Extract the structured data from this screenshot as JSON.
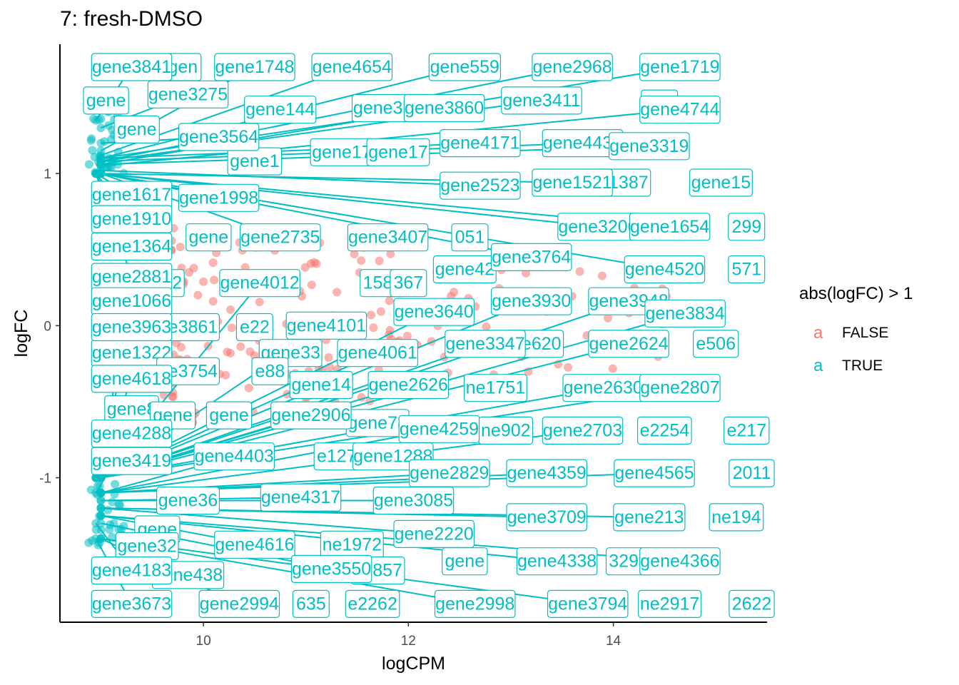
{
  "chart_data": {
    "type": "scatter",
    "title": "7: fresh-DMSO",
    "xlabel": "logCPM",
    "ylabel": "logFC",
    "xlim": [
      8.6,
      15.5
    ],
    "ylim": [
      -1.95,
      1.85
    ],
    "x_ticks": [
      10,
      12,
      14
    ],
    "x_tick_labels": [
      "10",
      "12",
      "14"
    ],
    "y_ticks": [
      -1,
      0,
      1
    ],
    "y_tick_labels": [
      "-1",
      "0",
      "1"
    ],
    "grid": false,
    "legend": {
      "title": "abs(logFC) > 1",
      "position": "right",
      "entries": [
        {
          "key": "a",
          "label": "FALSE",
          "color": "#F8766D"
        },
        {
          "key": "a",
          "label": "TRUE",
          "color": "#00BFC4"
        }
      ]
    },
    "colors": {
      "false": "#F8766D",
      "true": "#00BFC4"
    },
    "labeled_points": [
      {
        "label": "gene3841",
        "x": 8.95,
        "y": 1.35,
        "lx": 9.3,
        "ly": 1.7
      },
      {
        "label": "gene1748",
        "x": 9.0,
        "y": 1.15,
        "lx": 10.5,
        "ly": 1.7
      },
      {
        "label": "gene4654",
        "x": 9.0,
        "y": 1.12,
        "lx": 11.45,
        "ly": 1.7
      },
      {
        "label": "gene559",
        "x": 9.0,
        "y": 1.1,
        "lx": 12.55,
        "ly": 1.7
      },
      {
        "label": "gene2968",
        "x": 9.0,
        "y": 1.08,
        "lx": 13.6,
        "ly": 1.7
      },
      {
        "label": "gene1719",
        "x": 9.0,
        "y": 1.06,
        "lx": 14.65,
        "ly": 1.7
      },
      {
        "label": "gene3275",
        "x": 9.0,
        "y": 1.3,
        "lx": 9.85,
        "ly": 1.52
      },
      {
        "label": "gene3411",
        "x": 9.0,
        "y": 1.08,
        "lx": 13.3,
        "ly": 1.48
      },
      {
        "label": "gene3860",
        "x": 9.0,
        "y": 1.1,
        "lx": 12.35,
        "ly": 1.43
      },
      {
        "label": "gene4744",
        "x": 9.0,
        "y": 1.05,
        "lx": 14.65,
        "ly": 1.42
      },
      {
        "label": "gene3564",
        "x": 9.0,
        "y": 1.2,
        "lx": 10.15,
        "ly": 1.24
      },
      {
        "label": "gene4171",
        "x": 9.0,
        "y": 1.1,
        "lx": 12.7,
        "ly": 1.2
      },
      {
        "label": "gene4437",
        "x": 9.0,
        "y": 1.08,
        "lx": 13.7,
        "ly": 1.2
      },
      {
        "label": "gene3319",
        "x": 9.0,
        "y": 1.06,
        "lx": 14.35,
        "ly": 1.18
      },
      {
        "label": "gene2523",
        "x": 9.0,
        "y": 1.02,
        "lx": 12.7,
        "ly": 0.92
      },
      {
        "label": "gene1521",
        "x": 9.0,
        "y": 1.0,
        "lx": 13.6,
        "ly": 0.94
      },
      {
        "label": "gene1617",
        "x": 8.95,
        "y": 1.0,
        "lx": 9.3,
        "ly": 0.86
      },
      {
        "label": "gene1998",
        "x": 9.0,
        "y": 1.0,
        "lx": 10.15,
        "ly": 0.84
      },
      {
        "label": "gene1910",
        "x": 8.95,
        "y": 1.0,
        "lx": 9.3,
        "ly": 0.7
      },
      {
        "label": "gene2735",
        "x": 9.0,
        "y": 1.0,
        "lx": 10.75,
        "ly": 0.58
      },
      {
        "label": "gene3200",
        "x": 9.0,
        "y": 1.0,
        "lx": 13.85,
        "ly": 0.65
      },
      {
        "label": "gene1654",
        "x": 9.0,
        "y": 1.0,
        "lx": 14.55,
        "ly": 0.65
      },
      {
        "label": "gene1364",
        "x": 8.95,
        "y": 1.0,
        "lx": 9.3,
        "ly": 0.52
      },
      {
        "label": "gene3764",
        "x": 9.0,
        "y": 1.0,
        "lx": 13.2,
        "ly": 0.45
      },
      {
        "label": "gene4520",
        "x": 9.0,
        "y": 1.0,
        "lx": 14.5,
        "ly": 0.37
      },
      {
        "label": "gene2881",
        "x": 8.95,
        "y": 1.0,
        "lx": 9.3,
        "ly": 0.32
      },
      {
        "label": "gene4012",
        "x": 9.0,
        "y": -1.0,
        "lx": 10.55,
        "ly": 0.28
      },
      {
        "label": "gene1066",
        "x": 8.95,
        "y": -1.0,
        "lx": 9.3,
        "ly": 0.16
      },
      {
        "label": "gene3930",
        "x": 9.0,
        "y": -1.0,
        "lx": 13.2,
        "ly": 0.16
      },
      {
        "label": "gene3948",
        "x": 9.0,
        "y": -1.0,
        "lx": 14.15,
        "ly": 0.16
      },
      {
        "label": "gene3834",
        "x": 9.0,
        "y": -1.0,
        "lx": 14.7,
        "ly": 0.08
      },
      {
        "label": "gene3640",
        "x": 9.0,
        "y": -1.0,
        "lx": 12.25,
        "ly": 0.09
      },
      {
        "label": "gene3963",
        "x": 8.95,
        "y": -1.0,
        "lx": 9.3,
        "ly": -0.01
      },
      {
        "label": "gene4101",
        "x": 9.0,
        "y": -1.0,
        "lx": 11.2,
        "ly": 0.0
      },
      {
        "label": "gene3347",
        "x": 9.0,
        "y": -1.0,
        "lx": 12.75,
        "ly": -0.12
      },
      {
        "label": "gene2624",
        "x": 9.0,
        "y": -1.0,
        "lx": 14.15,
        "ly": -0.12
      },
      {
        "label": "gene4061",
        "x": 9.0,
        "y": -1.0,
        "lx": 11.7,
        "ly": -0.18
      },
      {
        "label": "gene4618",
        "x": 8.95,
        "y": -1.0,
        "lx": 9.3,
        "ly": -0.35
      },
      {
        "label": "gene2626",
        "x": 9.0,
        "y": -1.0,
        "lx": 12.0,
        "ly": -0.39
      },
      {
        "label": "gene2630",
        "x": 9.0,
        "y": -1.0,
        "lx": 13.9,
        "ly": -0.41
      },
      {
        "label": "gene2807",
        "x": 9.0,
        "y": -1.0,
        "lx": 14.65,
        "ly": -0.41
      },
      {
        "label": "gene2906",
        "x": 9.0,
        "y": -1.0,
        "lx": 11.05,
        "ly": -0.59
      },
      {
        "label": "gene4288",
        "x": 8.95,
        "y": -1.1,
        "lx": 9.3,
        "ly": -0.71
      },
      {
        "label": "gene4259",
        "x": 9.0,
        "y": -1.1,
        "lx": 12.3,
        "ly": -0.68
      },
      {
        "label": "gene2703",
        "x": 9.0,
        "y": -1.1,
        "lx": 13.7,
        "ly": -0.69
      },
      {
        "label": "gene4403",
        "x": 9.0,
        "y": -1.1,
        "lx": 10.3,
        "ly": -0.86
      },
      {
        "label": "gene2829",
        "x": 9.0,
        "y": -1.1,
        "lx": 12.4,
        "ly": -0.97
      },
      {
        "label": "gene4359",
        "x": 9.0,
        "y": -1.1,
        "lx": 13.35,
        "ly": -0.97
      },
      {
        "label": "gene4565",
        "x": 9.0,
        "y": -1.1,
        "lx": 14.4,
        "ly": -0.97
      },
      {
        "label": "gene4317",
        "x": 9.0,
        "y": -1.15,
        "lx": 10.95,
        "ly": -1.13
      },
      {
        "label": "gene3085",
        "x": 9.0,
        "y": -1.15,
        "lx": 12.05,
        "ly": -1.15
      },
      {
        "label": "gene3709",
        "x": 9.0,
        "y": -1.2,
        "lx": 13.35,
        "ly": -1.26
      },
      {
        "label": "gene213",
        "x": 9.0,
        "y": -1.2,
        "lx": 14.35,
        "ly": -1.26
      },
      {
        "label": "gene2220",
        "x": 9.0,
        "y": -1.2,
        "lx": 12.25,
        "ly": -1.37
      },
      {
        "label": "gene4616",
        "x": 9.0,
        "y": -1.25,
        "lx": 10.5,
        "ly": -1.44
      },
      {
        "label": "gene4338",
        "x": 9.0,
        "y": -1.25,
        "lx": 13.45,
        "ly": -1.55
      },
      {
        "label": "gene4366",
        "x": 9.0,
        "y": -1.25,
        "lx": 14.65,
        "ly": -1.55
      },
      {
        "label": "gene4183",
        "x": 8.95,
        "y": -1.3,
        "lx": 9.3,
        "ly": -1.61
      },
      {
        "label": "gene3550",
        "x": 9.0,
        "y": -1.3,
        "lx": 11.25,
        "ly": -1.6
      },
      {
        "label": "gene3673",
        "x": 8.95,
        "y": -1.4,
        "lx": 9.3,
        "ly": -1.83
      },
      {
        "label": "gene2994",
        "x": 9.0,
        "y": -1.4,
        "lx": 10.35,
        "ly": -1.83
      },
      {
        "label": "gene2998",
        "x": 9.0,
        "y": -1.4,
        "lx": 12.65,
        "ly": -1.83
      },
      {
        "label": "gene3794",
        "x": 9.0,
        "y": -1.4,
        "lx": 13.75,
        "ly": -1.83
      }
    ],
    "partial_labels": [
      {
        "label": "gen",
        "lx": 9.8,
        "ly": 1.7
      },
      {
        "label": "gene",
        "lx": 9.05,
        "ly": 1.48
      },
      {
        "label": "gene144",
        "lx": 10.75,
        "ly": 1.42
      },
      {
        "label": "gene375",
        "lx": 11.8,
        "ly": 1.43
      },
      {
        "label": "ne1",
        "lx": 14.45,
        "ly": 1.46
      },
      {
        "label": "gene",
        "lx": 9.35,
        "ly": 1.29
      },
      {
        "label": "gene17",
        "lx": 11.35,
        "ly": 1.14
      },
      {
        "label": "gene17",
        "lx": 11.9,
        "ly": 1.14
      },
      {
        "label": "gene1",
        "lx": 10.5,
        "ly": 1.08
      },
      {
        "label": "e1387",
        "lx": 14.1,
        "ly": 0.94
      },
      {
        "label": "gene15",
        "lx": 15.05,
        "ly": 0.94
      },
      {
        "label": "gene",
        "lx": 10.05,
        "ly": 0.58
      },
      {
        "label": "gene3407",
        "lx": 11.8,
        "ly": 0.58
      },
      {
        "label": "051",
        "lx": 12.6,
        "ly": 0.58
      },
      {
        "label": "299",
        "lx": 15.3,
        "ly": 0.65
      },
      {
        "label": "gene42",
        "lx": 12.55,
        "ly": 0.37
      },
      {
        "label": "571",
        "lx": 15.3,
        "ly": 0.37
      },
      {
        "label": "e2432",
        "lx": 9.55,
        "ly": 0.28
      },
      {
        "label": "1580",
        "lx": 11.75,
        "ly": 0.28
      },
      {
        "label": "367",
        "lx": 12.0,
        "ly": 0.28
      },
      {
        "label": "ne3861",
        "lx": 9.85,
        "ly": -0.01
      },
      {
        "label": "e22",
        "lx": 10.5,
        "ly": -0.01
      },
      {
        "label": "gene1322",
        "lx": 9.3,
        "ly": -0.18
      },
      {
        "label": "gene33",
        "lx": 10.85,
        "ly": -0.18
      },
      {
        "label": "ne620",
        "lx": 13.25,
        "ly": -0.12
      },
      {
        "label": "e506",
        "lx": 15.0,
        "ly": -0.12
      },
      {
        "label": "ne3754",
        "lx": 9.85,
        "ly": -0.3
      },
      {
        "label": "e88",
        "lx": 10.65,
        "ly": -0.3
      },
      {
        "label": "gene14",
        "lx": 11.15,
        "ly": -0.39
      },
      {
        "label": "ne1751",
        "lx": 12.85,
        "ly": -0.41
      },
      {
        "label": "gene8",
        "lx": 9.3,
        "ly": -0.55
      },
      {
        "label": "gene",
        "lx": 9.7,
        "ly": -0.59
      },
      {
        "label": "gene",
        "lx": 10.25,
        "ly": -0.59
      },
      {
        "label": "gene78",
        "lx": 11.7,
        "ly": -0.64
      },
      {
        "label": "ne902",
        "lx": 12.95,
        "ly": -0.69
      },
      {
        "label": "e2254",
        "lx": 14.5,
        "ly": -0.69
      },
      {
        "label": "e217",
        "lx": 15.3,
        "ly": -0.69
      },
      {
        "label": "gene3419",
        "lx": 9.3,
        "ly": -0.89
      },
      {
        "label": "e127",
        "lx": 11.3,
        "ly": -0.86
      },
      {
        "label": "gene1288",
        "lx": 11.85,
        "ly": -0.86
      },
      {
        "label": "2011",
        "lx": 15.35,
        "ly": -0.97
      },
      {
        "label": "gene36",
        "lx": 9.85,
        "ly": -1.15
      },
      {
        "label": "ne194",
        "lx": 15.2,
        "ly": -1.26
      },
      {
        "label": "gene",
        "lx": 9.55,
        "ly": -1.34
      },
      {
        "label": "gene32",
        "lx": 9.45,
        "ly": -1.45
      },
      {
        "label": "ne1972",
        "lx": 11.45,
        "ly": -1.44
      },
      {
        "label": "gene438",
        "lx": 9.85,
        "ly": -1.64
      },
      {
        "label": "e2857",
        "lx": 11.7,
        "ly": -1.61
      },
      {
        "label": "gene",
        "lx": 12.55,
        "ly": -1.55
      },
      {
        "label": "3291",
        "lx": 14.15,
        "ly": -1.55
      },
      {
        "label": "635",
        "lx": 11.05,
        "ly": -1.83
      },
      {
        "label": "e2262",
        "lx": 11.65,
        "ly": -1.83
      },
      {
        "label": "ne2917",
        "lx": 14.55,
        "ly": -1.83
      },
      {
        "label": "2622",
        "lx": 15.35,
        "ly": -1.83
      }
    ]
  }
}
